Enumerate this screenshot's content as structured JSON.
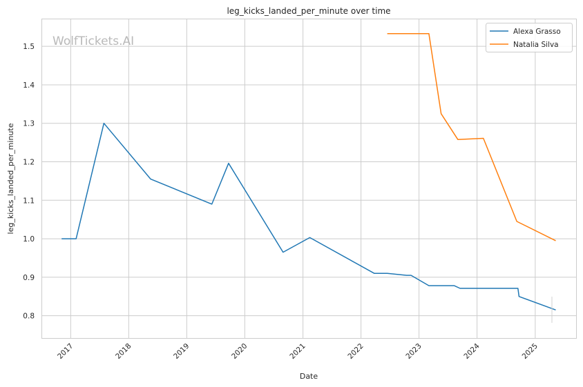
{
  "chart_data": {
    "type": "line",
    "title": "leg_kicks_landed_per_minute over time",
    "xlabel": "Date",
    "ylabel": "leg_kicks_landed_per_minute",
    "watermark": "WolfTickets.AI",
    "x_ticks": [
      "2017",
      "2018",
      "2019",
      "2020",
      "2021",
      "2022",
      "2023",
      "2024",
      "2025"
    ],
    "y_ticks": [
      "0.8",
      "0.9",
      "1.0",
      "1.1",
      "1.2",
      "1.3",
      "1.4",
      "1.5"
    ],
    "x_range": [
      "2016-07-01",
      "2025-09-15"
    ],
    "ylim": [
      0.742,
      1.572
    ],
    "grid": true,
    "legend_position": "top-right",
    "series": [
      {
        "name": "Alexa Grasso",
        "color": "#1f77b4",
        "points": [
          [
            "2016-11-05",
            1.0
          ],
          [
            "2017-02-04",
            1.0
          ],
          [
            "2017-07-29",
            1.3
          ],
          [
            "2018-05-19",
            1.155
          ],
          [
            "2019-06-08",
            1.09
          ],
          [
            "2019-09-21",
            1.196
          ],
          [
            "2020-08-29",
            0.965
          ],
          [
            "2021-02-13",
            1.003
          ],
          [
            "2022-03-26",
            0.91
          ],
          [
            "2022-06-15",
            0.91
          ],
          [
            "2022-10-15",
            0.905
          ],
          [
            "2022-11-12",
            0.905
          ],
          [
            "2023-03-04",
            0.878
          ],
          [
            "2023-08-10",
            0.878
          ],
          [
            "2023-09-16",
            0.871
          ],
          [
            "2024-09-14",
            0.871
          ],
          [
            "2024-09-21",
            0.85
          ],
          [
            "2025-05-10",
            0.815
          ]
        ]
      },
      {
        "name": "Natalia Silva",
        "color": "#ff7f0e",
        "points": [
          [
            "2022-06-15",
            1.533
          ],
          [
            "2023-03-04",
            1.533
          ],
          [
            "2023-05-20",
            1.325
          ],
          [
            "2023-09-02",
            1.258
          ],
          [
            "2024-02-10",
            1.261
          ],
          [
            "2024-09-07",
            1.045
          ],
          [
            "2025-05-10",
            0.995
          ]
        ]
      }
    ]
  }
}
